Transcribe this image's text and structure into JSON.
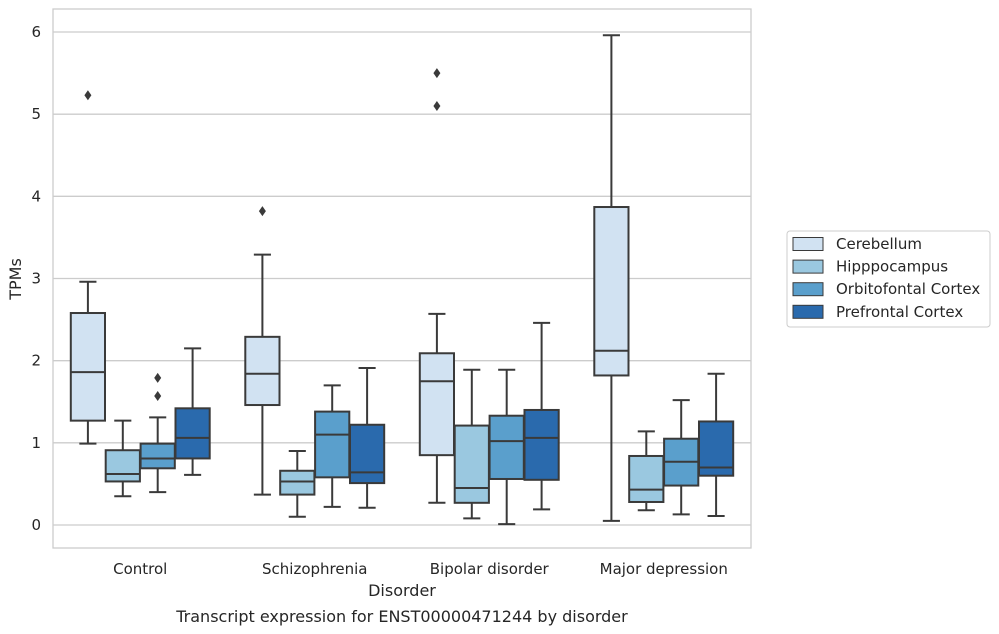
{
  "chart_data": {
    "type": "box",
    "title": "",
    "caption": "Transcript expression for ENST00000471244 by disorder",
    "xlabel": "Disorder",
    "ylabel": "TPMs",
    "ylim": [
      -0.28,
      6.28
    ],
    "yticks": [
      "0",
      "1",
      "2",
      "3",
      "4",
      "5",
      "6"
    ],
    "grid": "horizontal",
    "legend_placement": "right, outside plot",
    "categories": [
      "Control",
      "Schizophrenia",
      "Bipolar disorder",
      "Major depression"
    ],
    "series": [
      {
        "name": "Cerebellum",
        "color": "#d1e2f2",
        "boxes": [
          {
            "whisker_low": 0.99,
            "q1": 1.27,
            "median": 1.86,
            "q3": 2.58,
            "whisker_high": 2.96,
            "outliers": [
              5.23
            ]
          },
          {
            "whisker_low": 0.37,
            "q1": 1.46,
            "median": 1.84,
            "q3": 2.29,
            "whisker_high": 3.29,
            "outliers": [
              3.82
            ]
          },
          {
            "whisker_low": 0.27,
            "q1": 0.85,
            "median": 1.75,
            "q3": 2.09,
            "whisker_high": 2.57,
            "outliers": [
              5.1,
              5.5
            ]
          },
          {
            "whisker_low": 0.05,
            "q1": 1.82,
            "median": 2.12,
            "q3": 3.87,
            "whisker_high": 5.96,
            "outliers": []
          }
        ]
      },
      {
        "name": "Hipppocampus",
        "color": "#9ac8e0",
        "boxes": [
          {
            "whisker_low": 0.35,
            "q1": 0.53,
            "median": 0.62,
            "q3": 0.91,
            "whisker_high": 1.27,
            "outliers": []
          },
          {
            "whisker_low": 0.1,
            "q1": 0.37,
            "median": 0.53,
            "q3": 0.66,
            "whisker_high": 0.9,
            "outliers": []
          },
          {
            "whisker_low": 0.08,
            "q1": 0.27,
            "median": 0.45,
            "q3": 1.21,
            "whisker_high": 1.89,
            "outliers": []
          },
          {
            "whisker_low": 0.18,
            "q1": 0.28,
            "median": 0.43,
            "q3": 0.84,
            "whisker_high": 1.14,
            "outliers": []
          }
        ]
      },
      {
        "name": "Orbitofontal Cortex",
        "color": "#5a9fcc",
        "boxes": [
          {
            "whisker_low": 0.4,
            "q1": 0.69,
            "median": 0.81,
            "q3": 0.99,
            "whisker_high": 1.31,
            "outliers": [
              1.57,
              1.79
            ]
          },
          {
            "whisker_low": 0.22,
            "q1": 0.58,
            "median": 1.1,
            "q3": 1.38,
            "whisker_high": 1.7,
            "outliers": []
          },
          {
            "whisker_low": 0.01,
            "q1": 0.56,
            "median": 1.02,
            "q3": 1.33,
            "whisker_high": 1.89,
            "outliers": []
          },
          {
            "whisker_low": 0.13,
            "q1": 0.48,
            "median": 0.77,
            "q3": 1.05,
            "whisker_high": 1.52,
            "outliers": []
          }
        ]
      },
      {
        "name": "Prefrontal Cortex",
        "color": "#2a6aad",
        "boxes": [
          {
            "whisker_low": 0.61,
            "q1": 0.81,
            "median": 1.06,
            "q3": 1.42,
            "whisker_high": 2.15,
            "outliers": []
          },
          {
            "whisker_low": 0.21,
            "q1": 0.51,
            "median": 0.64,
            "q3": 1.22,
            "whisker_high": 1.91,
            "outliers": []
          },
          {
            "whisker_low": 0.19,
            "q1": 0.55,
            "median": 1.06,
            "q3": 1.4,
            "whisker_high": 2.46,
            "outliers": []
          },
          {
            "whisker_low": 0.11,
            "q1": 0.6,
            "median": 0.7,
            "q3": 1.26,
            "whisker_high": 1.84,
            "outliers": []
          }
        ]
      }
    ]
  }
}
